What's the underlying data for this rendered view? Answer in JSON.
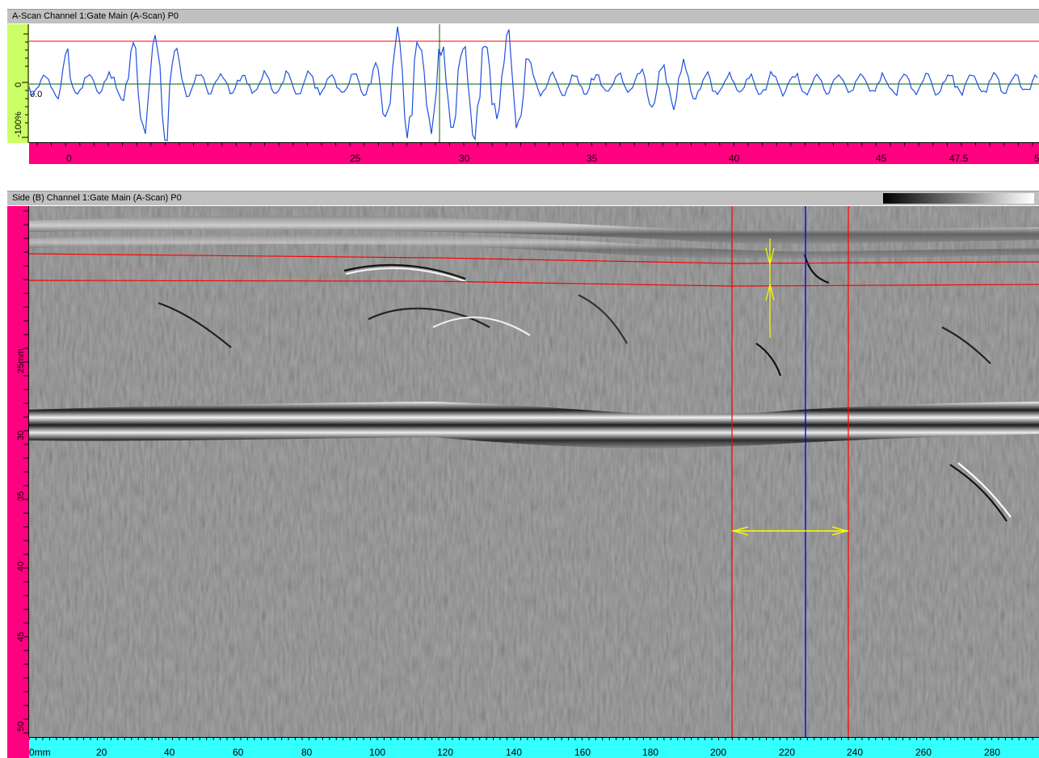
{
  "ascan": {
    "title": "A-Scan Channel 1:Gate Main (A-Scan) P0",
    "amp_labels": [
      "0",
      "-100%"
    ],
    "zero_label": "0.0",
    "ruler_labels": [
      "0",
      "25",
      "30",
      "35",
      "40",
      "45",
      "47.5",
      "5"
    ],
    "ruler_color": "#ff0080",
    "amp_ruler_color": "#ccff66",
    "trace_color": "#1f4fe0",
    "threshold_color": "#ff0000",
    "baseline_color": "#006000"
  },
  "bscan": {
    "title": "Side (B) Channel 1:Gate Main (A-Scan) P0",
    "depth_labels": [
      "25mm",
      "30",
      "35",
      "40",
      "45",
      "50"
    ],
    "scan_labels": [
      "0mm",
      "20",
      "40",
      "60",
      "80",
      "100",
      "120",
      "140",
      "160",
      "180",
      "200",
      "220",
      "240",
      "260",
      "280"
    ],
    "depth_ruler_color": "#ff0080",
    "scan_ruler_color": "#33ffff",
    "cursor_color": "#ff0000",
    "index_cursor_color": "#0000ff",
    "measure_color": "#ffff00",
    "palette_legend": "grayscale"
  }
}
